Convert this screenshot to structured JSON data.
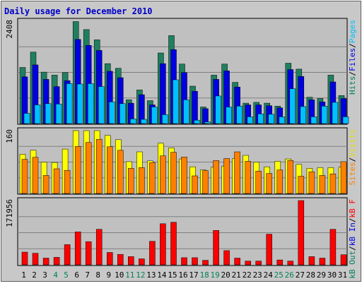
{
  "chart_data": {
    "type": "bar",
    "title": "Daily usage for December 2010",
    "categories": [
      "1",
      "2",
      "3",
      "4",
      "5",
      "6",
      "7",
      "8",
      "9",
      "10",
      "11",
      "12",
      "13",
      "14",
      "15",
      "16",
      "17",
      "18",
      "19",
      "20",
      "21",
      "22",
      "23",
      "24",
      "25",
      "26",
      "27",
      "28",
      "29",
      "30",
      "31"
    ],
    "weekend_days": [
      "4",
      "5",
      "11",
      "12",
      "18",
      "19",
      "25",
      "26"
    ],
    "panels": [
      {
        "id": "hits-files-pages",
        "ymax_label": "2408",
        "ylim": [
          0,
          2408
        ],
        "axis_label_parts": [
          {
            "text": "Pages",
            "color": "#00c0ff"
          },
          {
            "text": "/",
            "color": "#000000"
          },
          {
            "text": "Files",
            "color": "#0000e0"
          },
          {
            "text": "/",
            "color": "#000000"
          },
          {
            "text": "Hits",
            "color": "#008060"
          }
        ],
        "series": [
          {
            "name": "Hits",
            "color": "#1f8060",
            "values": [
              1320,
              1680,
              1210,
              1140,
              1200,
              2400,
              2210,
              1970,
              1410,
              1300,
              560,
              790,
              540,
              1660,
              2070,
              1400,
              880,
              390,
              1140,
              1400,
              970,
              480,
              500,
              480,
              410,
              1420,
              1280,
              620,
              590,
              1140,
              660
            ]
          },
          {
            "name": "Files",
            "color": "#0000e0",
            "values": [
              1100,
              1380,
              1040,
              870,
              1010,
              1980,
              1840,
              1720,
              1230,
              1080,
              480,
              680,
              440,
              1410,
              1740,
              1200,
              760,
              350,
              1040,
              1240,
              860,
              440,
              440,
              420,
              370,
              1270,
              1110,
              560,
              510,
              980,
              590
            ]
          },
          {
            "name": "Pages",
            "color": "#00c0ff",
            "values": [
              240,
              440,
              470,
              460,
              940,
              930,
              940,
              870,
              510,
              470,
              110,
              100,
              390,
              210,
              1030,
              560,
              80,
              40,
              650,
              390,
              410,
              160,
              230,
              220,
              160,
              820,
              400,
              160,
              410,
              500,
              160
            ]
          }
        ]
      },
      {
        "id": "visits-sites",
        "ymax_label": "160",
        "ylim": [
          0,
          160
        ],
        "axis_label_parts": [
          {
            "text": "Visits",
            "color": "#e0e000"
          },
          {
            "text": "/",
            "color": "#000000"
          },
          {
            "text": "Sites",
            "color": "#ff8000"
          }
        ],
        "series": [
          {
            "name": "Visits",
            "color": "#ffff00",
            "values": [
              100,
              110,
              80,
              79,
              113,
              163,
              162,
              168,
              148,
              137,
              81,
              106,
              83,
              128,
              116,
              88,
              68,
              60,
              67,
              70,
              89,
              97,
              80,
              68,
              82,
              88,
              74,
              64,
              66,
              66,
              67
            ]
          },
          {
            "name": "Sites",
            "color": "#ff8000",
            "values": [
              87,
              92,
              46,
              63,
              59,
              120,
              130,
              138,
              119,
              110,
              64,
              66,
              79,
              96,
              105,
              93,
              45,
              58,
              84,
              89,
              106,
              82,
              57,
              51,
              60,
              84,
              44,
              55,
              46,
              50,
              81
            ]
          }
        ]
      },
      {
        "id": "kb",
        "ymax_label": "171956",
        "ylim": [
          0,
          171956
        ],
        "axis_label_parts": [
          {
            "text": "kB F",
            "color": "#ff0000"
          },
          {
            "text": "/",
            "color": "#000000"
          },
          {
            "text": "kB In",
            "color": "#0000e0"
          },
          {
            "text": "/",
            "color": "#000000"
          },
          {
            "text": "kB Out",
            "color": "#008060"
          }
        ],
        "series": [
          {
            "name": "kB F",
            "color": "#ff0000",
            "values": [
              34000,
              31000,
              18000,
              20000,
              54000,
              88000,
              62000,
              95000,
              33000,
              28000,
              22000,
              16000,
              63000,
              110000,
              114000,
              19000,
              19000,
              12000,
              92000,
              38000,
              18000,
              10000,
              10000,
              82000,
              13000,
              10000,
              171956,
              22000,
              18000,
              95000,
              27000
            ]
          }
        ]
      }
    ]
  }
}
